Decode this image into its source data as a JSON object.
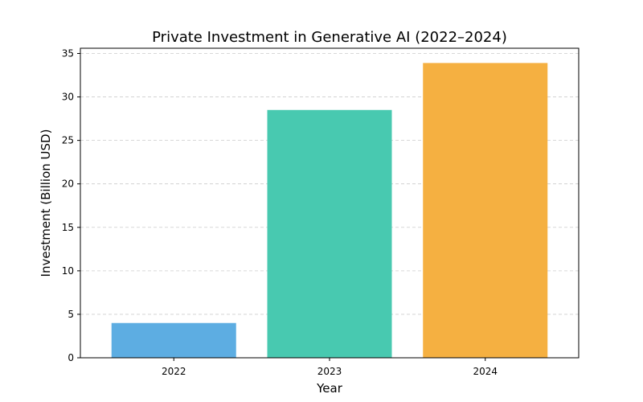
{
  "chart_data": {
    "type": "bar",
    "title": "Private Investment in Generative AI (2022–2024)",
    "xlabel": "Year",
    "ylabel": "Investment (Billion USD)",
    "categories": [
      "2022",
      "2023",
      "2024"
    ],
    "values": [
      4.0,
      28.5,
      33.9
    ],
    "colors": [
      "#5dade2",
      "#48c9b0",
      "#f5b041"
    ],
    "ylim": [
      0,
      35.6
    ],
    "yticks": [
      0,
      5,
      10,
      15,
      20,
      25,
      30,
      35
    ],
    "grid": "y-dashed"
  }
}
